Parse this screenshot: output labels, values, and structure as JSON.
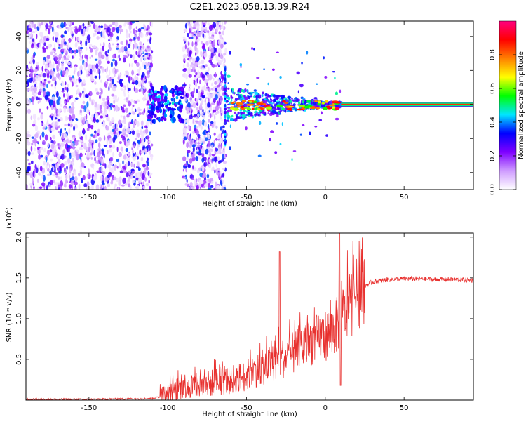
{
  "title": "C2E1.2023.058.13.39.R24",
  "chart_data": [
    {
      "type": "heatmap",
      "xlabel": "Height of straight line (km)",
      "ylabel": "Frequency (Hz)",
      "xlim": [
        -190,
        94
      ],
      "ylim": [
        -50,
        49
      ],
      "xticks": [
        -150,
        -100,
        -50,
        0,
        50
      ],
      "yticks": [
        -40,
        -20,
        0,
        20,
        40
      ],
      "colorbar": {
        "label": "Normalized spectral amplitude",
        "range": [
          0.0,
          1.0
        ],
        "ticks": [
          "0.0",
          "0.2",
          "0.4",
          "0.6",
          "0.8"
        ],
        "colormap": [
          "#ffffff",
          "#cf9cff",
          "#7f00ff",
          "#0000ff",
          "#00e6ff",
          "#00ff00",
          "#ffff00",
          "#ff8000",
          "#ff0000",
          "#ff0080"
        ]
      },
      "features": {
        "noise_regions_km": [
          [
            -190,
            -110
          ],
          [
            -90,
            -63
          ]
        ],
        "gap_km": [
          -110,
          -90
        ],
        "mixed_region_km": [
          -63,
          10
        ],
        "carrier_line_km": [
          10,
          94
        ],
        "carrier_frequency_hz": 0,
        "carrier_amplitude_range": [
          0.6,
          1.0
        ]
      }
    },
    {
      "type": "line",
      "xlabel": "Height of straight line (km)",
      "ylabel": "SNR (10 * v/v)",
      "y_multiplier": "(x10",
      "y_multiplier_exp": "4",
      "y_multiplier_close": ")",
      "xlim": [
        -190,
        94
      ],
      "ylim": [
        0,
        2.05
      ],
      "xticks": [
        -150,
        -100,
        -50,
        0,
        50
      ],
      "yticks": [
        "0.5",
        "1.0",
        "1.5",
        "2.0"
      ],
      "color": "#e8312f",
      "series": [
        {
          "x": [
            -190,
            -150,
            -110,
            -100,
            -90,
            -80,
            -70,
            -60,
            -50,
            -40,
            -30,
            -20,
            -10,
            0,
            5,
            10,
            15,
            20,
            25,
            30,
            40,
            50,
            60,
            70,
            80,
            94
          ],
          "y": [
            0.01,
            0.01,
            0.02,
            0.06,
            0.18,
            0.17,
            0.22,
            0.25,
            0.3,
            0.4,
            0.48,
            0.58,
            0.7,
            0.8,
            0.85,
            1.0,
            1.15,
            1.3,
            1.4,
            1.45,
            1.48,
            1.49,
            1.49,
            1.48,
            1.48,
            1.47
          ]
        }
      ],
      "spikes": [
        {
          "x": -29,
          "y": 1.82
        },
        {
          "x": 9,
          "y": 2.05
        },
        {
          "x": 9.7,
          "y": 0.18
        }
      ]
    }
  ]
}
